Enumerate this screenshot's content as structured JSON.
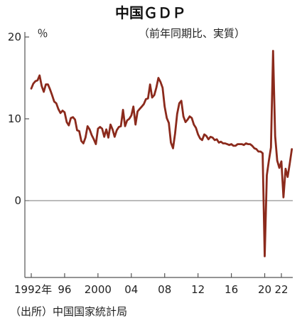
{
  "chart_data": {
    "type": "line",
    "title": "中国ＧＤＰ",
    "subtitle": "（前年同期比、実質）",
    "y_unit": "％",
    "source": "（出所）中国国家統計局",
    "ylim": [
      -9,
      21
    ],
    "xlim": [
      1991.7,
      2024.0
    ],
    "yticks": [
      {
        "value": 20,
        "label": "20"
      },
      {
        "value": 10,
        "label": "10"
      },
      {
        "value": 0,
        "label": "0"
      }
    ],
    "xticks": [
      {
        "value": 1992,
        "label": "1992年"
      },
      {
        "value": 1996,
        "label": "96"
      },
      {
        "value": 2000,
        "label": "2000"
      },
      {
        "value": 2004,
        "label": "04"
      },
      {
        "value": 2008,
        "label": "08"
      },
      {
        "value": 2012,
        "label": "12"
      },
      {
        "value": 2016,
        "label": "16"
      },
      {
        "value": 2020,
        "label": "20"
      },
      {
        "value": 2022,
        "label": "22"
      }
    ],
    "zero_line": true,
    "grid": false,
    "colors": {
      "line": "#8b2a1c",
      "axis": "#555555",
      "zero": "#777777"
    },
    "series": [
      {
        "x": [
          1992.0,
          1992.25,
          1992.5,
          1992.75,
          1993.0,
          1993.25,
          1993.5,
          1993.75,
          1994.0,
          1994.25,
          1994.5,
          1994.75,
          1995.0,
          1995.25,
          1995.5,
          1995.75,
          1996.0,
          1996.25,
          1996.5,
          1996.75,
          1997.0,
          1997.25,
          1997.5,
          1997.75,
          1998.0,
          1998.25,
          1998.5,
          1998.75,
          1999.0,
          1999.25,
          1999.5,
          1999.75,
          2000.0,
          2000.25,
          2000.5,
          2000.75,
          2001.0,
          2001.25,
          2001.5,
          2001.75,
          2002.0,
          2002.25,
          2002.5,
          2002.75,
          2003.0,
          2003.25,
          2003.5,
          2003.75,
          2004.0,
          2004.25,
          2004.5,
          2004.75,
          2005.0,
          2005.25,
          2005.5,
          2005.75,
          2006.0,
          2006.25,
          2006.5,
          2006.75,
          2007.0,
          2007.25,
          2007.5,
          2007.75,
          2008.0,
          2008.25,
          2008.5,
          2008.75,
          2009.0,
          2009.25,
          2009.5,
          2009.75,
          2010.0,
          2010.25,
          2010.5,
          2010.75,
          2011.0,
          2011.25,
          2011.5,
          2011.75,
          2012.0,
          2012.25,
          2012.5,
          2012.75,
          2013.0,
          2013.25,
          2013.5,
          2013.75,
          2014.0,
          2014.25,
          2014.5,
          2014.75,
          2015.0,
          2015.25,
          2015.5,
          2015.75,
          2016.0,
          2016.25,
          2016.5,
          2016.75,
          2017.0,
          2017.25,
          2017.5,
          2017.75,
          2018.0,
          2018.25,
          2018.5,
          2018.75,
          2019.0,
          2019.25,
          2019.5,
          2019.75,
          2020.0,
          2020.25,
          2020.5,
          2020.75,
          2021.0,
          2021.25,
          2021.5,
          2021.75,
          2022.0,
          2022.25,
          2022.5,
          2022.75,
          2023.0,
          2023.25
        ],
        "values": [
          13.7,
          14.3,
          14.6,
          14.7,
          15.3,
          14.0,
          13.3,
          14.2,
          14.2,
          13.6,
          12.9,
          12.1,
          11.9,
          11.2,
          10.7,
          11.0,
          10.8,
          9.6,
          9.2,
          10.1,
          10.2,
          9.9,
          8.6,
          8.5,
          7.3,
          7.0,
          7.7,
          9.1,
          8.7,
          8.0,
          7.5,
          6.9,
          8.8,
          9.0,
          8.8,
          7.8,
          8.7,
          7.7,
          9.3,
          8.7,
          7.8,
          8.6,
          9.0,
          9.1,
          11.1,
          9.1,
          9.8,
          10.0,
          10.4,
          11.5,
          9.3,
          10.9,
          11.2,
          11.5,
          11.8,
          12.4,
          12.5,
          14.2,
          12.6,
          12.9,
          13.8,
          15.0,
          14.5,
          13.8,
          11.5,
          10.1,
          9.5,
          7.1,
          6.4,
          8.2,
          10.6,
          11.9,
          12.2,
          10.3,
          9.6,
          9.9,
          10.3,
          10.1,
          9.3,
          8.9,
          8.1,
          7.6,
          7.4,
          8.1,
          7.9,
          7.5,
          7.8,
          7.7,
          7.4,
          7.5,
          7.1,
          7.2,
          7.0,
          7.0,
          6.9,
          6.8,
          6.9,
          6.7,
          6.7,
          6.9,
          6.9,
          6.9,
          6.8,
          7.0,
          6.9,
          6.9,
          6.7,
          6.4,
          6.3,
          6.0,
          6.0,
          5.8,
          -6.8,
          3.1,
          4.9,
          6.5,
          18.3,
          7.9,
          4.9,
          4.0,
          4.8,
          0.4,
          3.9,
          2.9,
          4.5,
          6.3
        ]
      }
    ]
  }
}
